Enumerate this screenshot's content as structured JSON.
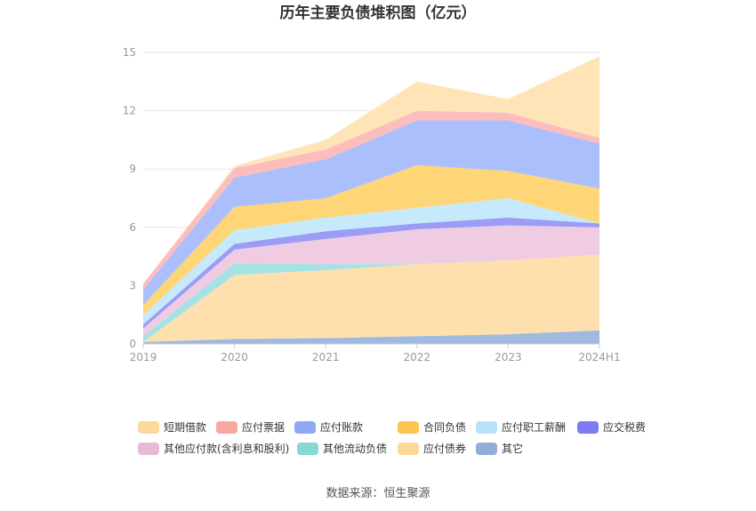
{
  "chart_data": {
    "type": "area",
    "stacked": true,
    "title": "历年主要负债堆积图（亿元）",
    "source": "数据来源：恒生聚源",
    "categories": [
      "2019",
      "2020",
      "2021",
      "2022",
      "2023",
      "2024H1"
    ],
    "y_ticks": [
      "0",
      "3",
      "6",
      "9",
      "12",
      "15"
    ],
    "ylim": [
      0,
      15
    ],
    "grid": true,
    "series": [
      {
        "name": "其它",
        "color": "#9fb9e0",
        "values": [
          0.1,
          0.25,
          0.3,
          0.4,
          0.5,
          0.7
        ]
      },
      {
        "name": "应付债券",
        "color": "#fde0ae",
        "values": [
          0.0,
          3.3,
          3.5,
          3.7,
          3.8,
          3.9
        ]
      },
      {
        "name": "其他流动负债",
        "color": "#a4e2e3",
        "values": [
          0.3,
          0.6,
          0.3,
          0.0,
          0.0,
          0.0
        ]
      },
      {
        "name": "其他应付款(含利息和股利)",
        "color": "#efcce2",
        "values": [
          0.4,
          0.7,
          1.3,
          1.8,
          1.8,
          1.4
        ]
      },
      {
        "name": "应交税费",
        "color": "#9b9cf5",
        "values": [
          0.2,
          0.3,
          0.4,
          0.3,
          0.4,
          0.2
        ]
      },
      {
        "name": "应付职工薪酬",
        "color": "#c6e9fc",
        "values": [
          0.5,
          0.7,
          0.7,
          0.8,
          1.0,
          0.0
        ]
      },
      {
        "name": "合同负债",
        "color": "#fed678",
        "values": [
          0.5,
          1.2,
          1.0,
          2.2,
          1.4,
          1.8
        ]
      },
      {
        "name": "应付账款",
        "color": "#aabffc",
        "values": [
          0.8,
          1.5,
          2.0,
          2.3,
          2.6,
          2.3
        ]
      },
      {
        "name": "应付票据",
        "color": "#fdbdbd",
        "values": [
          0.3,
          0.5,
          0.5,
          0.5,
          0.4,
          0.3
        ]
      },
      {
        "name": "短期借款",
        "color": "#fee4b7",
        "values": [
          0.0,
          0.1,
          0.5,
          1.5,
          0.7,
          4.2
        ]
      }
    ],
    "legend": {
      "position": "bottom",
      "items": [
        {
          "name": "短期借款",
          "color": "#fdd89a"
        },
        {
          "name": "应付票据",
          "color": "#f8a8a0"
        },
        {
          "name": "应付账款",
          "color": "#8fa7f5"
        },
        {
          "name": "合同负债",
          "color": "#fdc54f"
        },
        {
          "name": "应付职工薪酬",
          "color": "#b6e2fb"
        },
        {
          "name": "应交税费",
          "color": "#7b7cf2"
        },
        {
          "name": "其他应付款(含利息和股利)",
          "color": "#e7b9d7"
        },
        {
          "name": "其他流动负债",
          "color": "#88d8d6"
        },
        {
          "name": "应付债券",
          "color": "#fdd89a"
        },
        {
          "name": "其它",
          "color": "#93add9"
        }
      ]
    }
  }
}
